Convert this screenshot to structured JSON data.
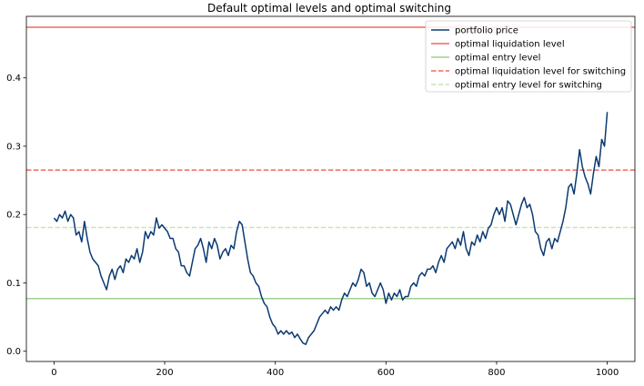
{
  "chart_data": {
    "type": "line",
    "title": "Default optimal levels and optimal switching",
    "xlabel": "",
    "ylabel": "",
    "xlim": [
      -50,
      1050
    ],
    "ylim": [
      -0.015,
      0.49
    ],
    "x_ticks": [
      0,
      200,
      400,
      600,
      800,
      1000
    ],
    "x_tick_labels": [
      "0",
      "200",
      "400",
      "600",
      "800",
      "1000"
    ],
    "y_ticks": [
      0.0,
      0.1,
      0.2,
      0.3,
      0.4
    ],
    "y_tick_labels": [
      "0.0",
      "0.1",
      "0.2",
      "0.3",
      "0.4"
    ],
    "grid": false,
    "legend_position": "top-right",
    "series": [
      {
        "name": "portfolio price",
        "color": "#0b3a72",
        "style": "solid",
        "points": [
          [
            0,
            0.195
          ],
          [
            5,
            0.19
          ],
          [
            10,
            0.2
          ],
          [
            15,
            0.195
          ],
          [
            20,
            0.205
          ],
          [
            25,
            0.19
          ],
          [
            30,
            0.2
          ],
          [
            35,
            0.195
          ],
          [
            40,
            0.17
          ],
          [
            45,
            0.175
          ],
          [
            50,
            0.16
          ],
          [
            55,
            0.19
          ],
          [
            60,
            0.165
          ],
          [
            65,
            0.145
          ],
          [
            70,
            0.135
          ],
          [
            75,
            0.13
          ],
          [
            80,
            0.125
          ],
          [
            85,
            0.11
          ],
          [
            90,
            0.1
          ],
          [
            95,
            0.09
          ],
          [
            100,
            0.11
          ],
          [
            105,
            0.12
          ],
          [
            110,
            0.105
          ],
          [
            115,
            0.12
          ],
          [
            120,
            0.125
          ],
          [
            125,
            0.115
          ],
          [
            130,
            0.135
          ],
          [
            135,
            0.13
          ],
          [
            140,
            0.14
          ],
          [
            145,
            0.135
          ],
          [
            150,
            0.15
          ],
          [
            155,
            0.13
          ],
          [
            160,
            0.145
          ],
          [
            165,
            0.175
          ],
          [
            170,
            0.165
          ],
          [
            175,
            0.175
          ],
          [
            180,
            0.17
          ],
          [
            185,
            0.195
          ],
          [
            190,
            0.18
          ],
          [
            195,
            0.185
          ],
          [
            200,
            0.18
          ],
          [
            205,
            0.175
          ],
          [
            210,
            0.165
          ],
          [
            215,
            0.165
          ],
          [
            220,
            0.15
          ],
          [
            225,
            0.145
          ],
          [
            230,
            0.125
          ],
          [
            235,
            0.125
          ],
          [
            240,
            0.115
          ],
          [
            245,
            0.11
          ],
          [
            250,
            0.13
          ],
          [
            255,
            0.15
          ],
          [
            260,
            0.155
          ],
          [
            265,
            0.165
          ],
          [
            270,
            0.15
          ],
          [
            275,
            0.13
          ],
          [
            280,
            0.16
          ],
          [
            285,
            0.15
          ],
          [
            290,
            0.165
          ],
          [
            295,
            0.155
          ],
          [
            300,
            0.135
          ],
          [
            305,
            0.145
          ],
          [
            310,
            0.15
          ],
          [
            315,
            0.14
          ],
          [
            320,
            0.155
          ],
          [
            325,
            0.15
          ],
          [
            330,
            0.175
          ],
          [
            335,
            0.19
          ],
          [
            340,
            0.185
          ],
          [
            345,
            0.16
          ],
          [
            350,
            0.135
          ],
          [
            355,
            0.115
          ],
          [
            360,
            0.11
          ],
          [
            365,
            0.1
          ],
          [
            370,
            0.095
          ],
          [
            375,
            0.08
          ],
          [
            380,
            0.07
          ],
          [
            385,
            0.065
          ],
          [
            390,
            0.05
          ],
          [
            395,
            0.04
          ],
          [
            400,
            0.035
          ],
          [
            405,
            0.025
          ],
          [
            410,
            0.03
          ],
          [
            415,
            0.025
          ],
          [
            420,
            0.03
          ],
          [
            425,
            0.025
          ],
          [
            430,
            0.028
          ],
          [
            435,
            0.02
          ],
          [
            440,
            0.025
          ],
          [
            445,
            0.018
          ],
          [
            450,
            0.012
          ],
          [
            455,
            0.01
          ],
          [
            460,
            0.02
          ],
          [
            465,
            0.025
          ],
          [
            470,
            0.03
          ],
          [
            475,
            0.04
          ],
          [
            480,
            0.05
          ],
          [
            485,
            0.055
          ],
          [
            490,
            0.06
          ],
          [
            495,
            0.055
          ],
          [
            500,
            0.065
          ],
          [
            505,
            0.06
          ],
          [
            510,
            0.065
          ],
          [
            515,
            0.06
          ],
          [
            520,
            0.075
          ],
          [
            525,
            0.085
          ],
          [
            530,
            0.08
          ],
          [
            535,
            0.09
          ],
          [
            540,
            0.1
          ],
          [
            545,
            0.095
          ],
          [
            550,
            0.105
          ],
          [
            555,
            0.12
          ],
          [
            560,
            0.115
          ],
          [
            565,
            0.095
          ],
          [
            570,
            0.1
          ],
          [
            575,
            0.085
          ],
          [
            580,
            0.08
          ],
          [
            585,
            0.09
          ],
          [
            590,
            0.1
          ],
          [
            595,
            0.09
          ],
          [
            600,
            0.07
          ],
          [
            605,
            0.085
          ],
          [
            610,
            0.075
          ],
          [
            615,
            0.085
          ],
          [
            620,
            0.08
          ],
          [
            625,
            0.09
          ],
          [
            630,
            0.075
          ],
          [
            635,
            0.08
          ],
          [
            640,
            0.08
          ],
          [
            645,
            0.095
          ],
          [
            650,
            0.1
          ],
          [
            655,
            0.095
          ],
          [
            660,
            0.11
          ],
          [
            665,
            0.115
          ],
          [
            670,
            0.11
          ],
          [
            675,
            0.12
          ],
          [
            680,
            0.12
          ],
          [
            685,
            0.125
          ],
          [
            690,
            0.115
          ],
          [
            695,
            0.13
          ],
          [
            700,
            0.14
          ],
          [
            705,
            0.13
          ],
          [
            710,
            0.15
          ],
          [
            715,
            0.155
          ],
          [
            720,
            0.16
          ],
          [
            725,
            0.15
          ],
          [
            730,
            0.165
          ],
          [
            735,
            0.155
          ],
          [
            740,
            0.175
          ],
          [
            745,
            0.15
          ],
          [
            750,
            0.14
          ],
          [
            755,
            0.16
          ],
          [
            760,
            0.155
          ],
          [
            765,
            0.17
          ],
          [
            770,
            0.16
          ],
          [
            775,
            0.175
          ],
          [
            780,
            0.165
          ],
          [
            785,
            0.18
          ],
          [
            790,
            0.185
          ],
          [
            795,
            0.2
          ],
          [
            800,
            0.21
          ],
          [
            805,
            0.2
          ],
          [
            810,
            0.21
          ],
          [
            815,
            0.19
          ],
          [
            820,
            0.22
          ],
          [
            825,
            0.215
          ],
          [
            830,
            0.2
          ],
          [
            835,
            0.185
          ],
          [
            840,
            0.2
          ],
          [
            845,
            0.215
          ],
          [
            850,
            0.225
          ],
          [
            855,
            0.21
          ],
          [
            860,
            0.215
          ],
          [
            865,
            0.2
          ],
          [
            870,
            0.175
          ],
          [
            875,
            0.17
          ],
          [
            880,
            0.15
          ],
          [
            885,
            0.14
          ],
          [
            890,
            0.16
          ],
          [
            895,
            0.165
          ],
          [
            900,
            0.15
          ],
          [
            905,
            0.165
          ],
          [
            910,
            0.16
          ],
          [
            915,
            0.175
          ],
          [
            920,
            0.19
          ],
          [
            925,
            0.21
          ],
          [
            930,
            0.24
          ],
          [
            935,
            0.245
          ],
          [
            940,
            0.23
          ],
          [
            945,
            0.26
          ],
          [
            950,
            0.295
          ],
          [
            955,
            0.27
          ],
          [
            960,
            0.255
          ],
          [
            965,
            0.245
          ],
          [
            970,
            0.23
          ],
          [
            975,
            0.26
          ],
          [
            980,
            0.285
          ],
          [
            985,
            0.27
          ],
          [
            990,
            0.31
          ],
          [
            995,
            0.3
          ],
          [
            1000,
            0.35
          ]
        ]
      },
      {
        "name": "optimal liquidation level",
        "color": "#f06a5a",
        "style": "solid",
        "y": 0.474
      },
      {
        "name": "optimal entry level",
        "color": "#9fd08f",
        "style": "solid",
        "y": 0.077
      },
      {
        "name": "optimal liquidation level for switching",
        "color": "#f06a5a",
        "style": "dashed",
        "y": 0.265
      },
      {
        "name": "optimal entry level for switching",
        "color": "#c9e5b8",
        "style": "dashed",
        "y": 0.181
      }
    ]
  }
}
